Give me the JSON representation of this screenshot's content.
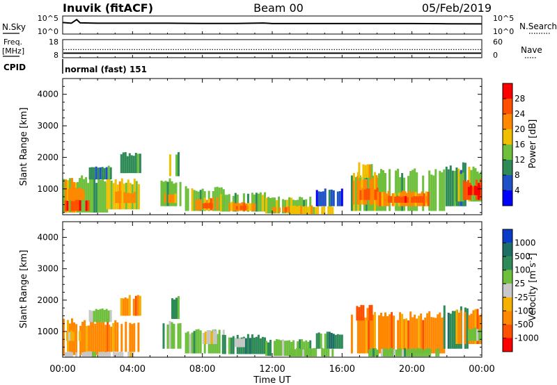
{
  "header": {
    "station": "Inuvik (fitACF)",
    "beam": "Beam 00",
    "date": "05/Feb/2019"
  },
  "side_labels": {
    "nsky": "N.Sky",
    "nsearch": "N.Search",
    "freq_line1": "Freq.",
    "freq_line2": "[MHz]",
    "nave": "Nave",
    "cpid": "CPID"
  },
  "cpid_text": "normal (fast) 151",
  "xlabel": "Time UT",
  "chart_data": [
    {
      "type": "line",
      "name": "noise-panel",
      "left_ticks": [
        "10^5",
        "10^0"
      ],
      "right_ticks": [
        "10^5",
        "10^0"
      ],
      "x": [
        0,
        0.5,
        0.8,
        1,
        2,
        4,
        6,
        8,
        10,
        11.5,
        12,
        14,
        16,
        18,
        20,
        22,
        24
      ],
      "y": [
        3.2,
        3.0,
        4.0,
        3.1,
        3.0,
        3.0,
        3.0,
        2.95,
        2.95,
        3.05,
        2.9,
        2.9,
        2.9,
        2.9,
        2.9,
        2.85,
        2.8
      ],
      "ylim": [
        0,
        5
      ],
      "xlim": [
        0,
        24
      ]
    },
    {
      "type": "line",
      "name": "frequency-panel",
      "left_ticks": [
        "18",
        "8"
      ],
      "right_ticks": [
        "60",
        "0"
      ],
      "freq_mhz": 10.5,
      "nave": 27,
      "freq_ylim": [
        8,
        18
      ],
      "nave_ylim": [
        0,
        60
      ]
    },
    {
      "type": "heatmap",
      "name": "power",
      "ylabel": "Slant Range [km]",
      "cbar_label": "Power [dB]",
      "yticks": [
        "1000",
        "2000",
        "3000",
        "4000"
      ],
      "xticks": [
        "00:00",
        "04:00",
        "08:00",
        "12:00",
        "16:00",
        "20:00",
        "00:00"
      ],
      "xlim": [
        0,
        24
      ],
      "ylim": [
        180,
        4500
      ],
      "colorbar": {
        "ticks": [
          "4",
          "8",
          "12",
          "16",
          "20",
          "24",
          "28"
        ],
        "colors": [
          "#0000ff",
          "#1e50c8",
          "#2e8b57",
          "#6dbf3c",
          "#f0c000",
          "#ff8800",
          "#ff5000",
          "#ff0000"
        ]
      },
      "echo_blocks": [
        {
          "t0": 0.0,
          "t1": 0.8,
          "r0": 250,
          "r1": 1300,
          "c": 4
        },
        {
          "t0": 0.8,
          "t1": 2.5,
          "r0": 250,
          "r1": 1300,
          "c": 3
        },
        {
          "t0": 2.5,
          "t1": 4.4,
          "r0": 350,
          "r1": 1250,
          "c": 4
        },
        {
          "t0": 0.1,
          "t1": 1.5,
          "r0": 300,
          "r1": 650,
          "c": 6
        },
        {
          "t0": 0.3,
          "t1": 1.2,
          "r0": 650,
          "r1": 1000,
          "c": 5
        },
        {
          "t0": 3.0,
          "t1": 4.2,
          "r0": 550,
          "r1": 900,
          "c": 5
        },
        {
          "t0": 1.5,
          "t1": 2.8,
          "r0": 1300,
          "r1": 1700,
          "c": 2
        },
        {
          "t0": 3.3,
          "t1": 4.4,
          "r0": 1500,
          "r1": 2100,
          "c": 2
        },
        {
          "t0": 5.6,
          "t1": 6.8,
          "r0": 450,
          "r1": 1250,
          "c": 3
        },
        {
          "t0": 5.8,
          "t1": 6.5,
          "r0": 550,
          "r1": 850,
          "c": 5
        },
        {
          "t0": 6.1,
          "t1": 6.6,
          "r0": 1400,
          "r1": 2100,
          "c": 3
        },
        {
          "t0": 7.0,
          "t1": 9.2,
          "r0": 300,
          "r1": 1000,
          "c": 3
        },
        {
          "t0": 7.6,
          "t1": 8.8,
          "r0": 320,
          "r1": 700,
          "c": 5
        },
        {
          "t0": 8.0,
          "t1": 8.6,
          "r0": 380,
          "r1": 550,
          "c": 6
        },
        {
          "t0": 9.0,
          "t1": 11.6,
          "r0": 280,
          "r1": 850,
          "c": 3
        },
        {
          "t0": 9.5,
          "t1": 11.0,
          "r0": 300,
          "r1": 560,
          "c": 5
        },
        {
          "t0": 9.8,
          "t1": 10.6,
          "r0": 340,
          "r1": 460,
          "c": 6
        },
        {
          "t0": 11.6,
          "t1": 14.2,
          "r0": 220,
          "r1": 700,
          "c": 3
        },
        {
          "t0": 12.0,
          "t1": 13.6,
          "r0": 260,
          "r1": 430,
          "c": 5
        },
        {
          "t0": 13.0,
          "t1": 15.5,
          "r0": 200,
          "r1": 450,
          "c": 4
        },
        {
          "t0": 14.5,
          "t1": 16.0,
          "r0": 450,
          "r1": 950,
          "c": 1
        },
        {
          "t0": 16.5,
          "t1": 21.8,
          "r0": 300,
          "r1": 1500,
          "c": 3
        },
        {
          "t0": 16.6,
          "t1": 18.0,
          "r0": 500,
          "r1": 1350,
          "c": 5
        },
        {
          "t0": 17.0,
          "t1": 18.0,
          "r0": 650,
          "r1": 1000,
          "c": 6
        },
        {
          "t0": 18.0,
          "t1": 21.0,
          "r0": 450,
          "r1": 900,
          "c": 5
        },
        {
          "t0": 18.5,
          "t1": 20.8,
          "r0": 560,
          "r1": 760,
          "c": 6
        },
        {
          "t0": 16.8,
          "t1": 17.8,
          "r0": 1350,
          "r1": 1800,
          "c": 4
        },
        {
          "t0": 21.8,
          "t1": 23.2,
          "r0": 450,
          "r1": 1700,
          "c": 2
        },
        {
          "t0": 22.5,
          "t1": 24.0,
          "r0": 600,
          "r1": 1600,
          "c": 3
        },
        {
          "t0": 22.8,
          "t1": 24.0,
          "r0": 650,
          "r1": 1250,
          "c": 6
        },
        {
          "t0": 23.2,
          "t1": 23.9,
          "r0": 800,
          "r1": 1100,
          "c": 7
        }
      ]
    },
    {
      "type": "heatmap",
      "name": "velocity",
      "ylabel": "Slant Range [km]",
      "cbar_label": "Velocity [m s^-1]",
      "yticks": [
        "1000",
        "2000",
        "3000",
        "4000"
      ],
      "xticks": [
        "00:00",
        "04:00",
        "08:00",
        "12:00",
        "16:00",
        "20:00",
        "00:00"
      ],
      "xlim": [
        0,
        24
      ],
      "ylim": [
        180,
        4500
      ],
      "colorbar": {
        "ticks": [
          "1000",
          "500",
          "100",
          "25",
          "-25",
          "-100",
          "-500",
          "-1000"
        ],
        "colors": [
          "#0a3cc8",
          "#1e6e64",
          "#2e8b57",
          "#6dbf3c",
          "#c8c8c8",
          "#f5b000",
          "#ff8800",
          "#ff5000",
          "#ff0000"
        ]
      },
      "echo_blocks": [
        {
          "t0": 0.0,
          "t1": 2.6,
          "r0": 250,
          "r1": 1300,
          "c": 6
        },
        {
          "t0": 2.6,
          "t1": 4.4,
          "r0": 350,
          "r1": 1250,
          "c": 6
        },
        {
          "t0": 0.2,
          "t1": 1.0,
          "r0": 700,
          "r1": 1000,
          "c": 5
        },
        {
          "t0": 1.5,
          "t1": 2.8,
          "r0": 1300,
          "r1": 1700,
          "c": 3
        },
        {
          "t0": 3.3,
          "t1": 4.4,
          "r0": 1500,
          "r1": 2100,
          "c": 6
        },
        {
          "t0": 0.0,
          "t1": 4.0,
          "r0": 180,
          "r1": 350,
          "c": 4
        },
        {
          "t0": 5.6,
          "t1": 6.8,
          "r0": 450,
          "r1": 1250,
          "c": 3
        },
        {
          "t0": 6.1,
          "t1": 6.6,
          "r0": 1400,
          "r1": 2100,
          "c": 2
        },
        {
          "t0": 7.0,
          "t1": 9.2,
          "r0": 300,
          "r1": 1000,
          "c": 3
        },
        {
          "t0": 8.0,
          "t1": 8.8,
          "r0": 600,
          "r1": 1000,
          "c": 4
        },
        {
          "t0": 9.0,
          "t1": 11.6,
          "r0": 280,
          "r1": 850,
          "c": 2
        },
        {
          "t0": 9.6,
          "t1": 10.4,
          "r0": 500,
          "r1": 800,
          "c": 4
        },
        {
          "t0": 11.6,
          "t1": 14.2,
          "r0": 220,
          "r1": 700,
          "c": 3
        },
        {
          "t0": 13.0,
          "t1": 15.5,
          "r0": 200,
          "r1": 450,
          "c": 3
        },
        {
          "t0": 14.5,
          "t1": 16.0,
          "r0": 450,
          "r1": 950,
          "c": 2
        },
        {
          "t0": 16.5,
          "t1": 21.8,
          "r0": 300,
          "r1": 1500,
          "c": 6
        },
        {
          "t0": 16.8,
          "t1": 17.8,
          "r0": 1350,
          "r1": 1800,
          "c": 7
        },
        {
          "t0": 17.5,
          "t1": 21.5,
          "r0": 200,
          "r1": 450,
          "c": 3
        },
        {
          "t0": 21.8,
          "t1": 23.2,
          "r0": 450,
          "r1": 1700,
          "c": 2
        },
        {
          "t0": 22.5,
          "t1": 24.0,
          "r0": 600,
          "r1": 1600,
          "c": 6
        },
        {
          "t0": 23.2,
          "t1": 24.0,
          "r0": 700,
          "r1": 1100,
          "c": 3
        }
      ]
    }
  ]
}
